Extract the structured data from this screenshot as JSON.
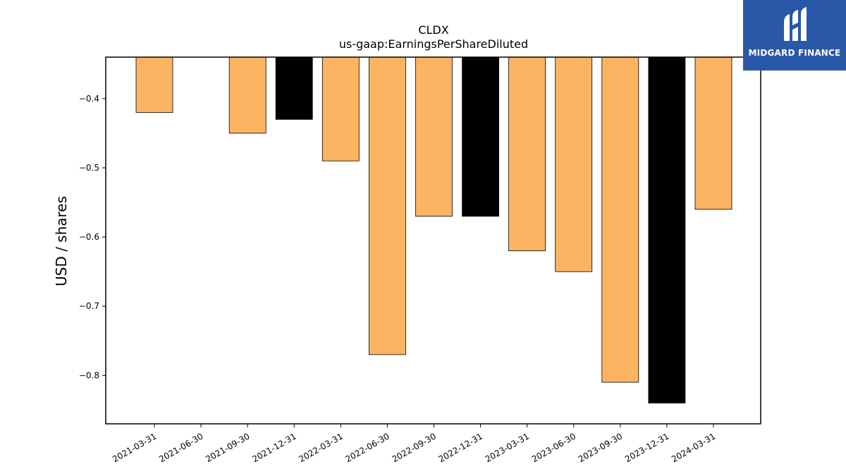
{
  "chart_data": {
    "type": "bar",
    "title": "CLDX",
    "subtitle": "us-gaap:EarningsPerShareDiluted",
    "ylabel": "USD / shares",
    "xlabel": "",
    "ylim": [
      -0.87,
      -0.34
    ],
    "yticks": [
      -0.4,
      -0.5,
      -0.6,
      -0.7,
      -0.8
    ],
    "ytick_labels": [
      "−0.4",
      "−0.5",
      "−0.6",
      "−0.7",
      "−0.8"
    ],
    "categories": [
      "2021-03-31",
      "2021-06-30",
      "2021-09-30",
      "2021-12-31",
      "2022-03-31",
      "2022-06-30",
      "2022-09-30",
      "2022-12-31",
      "2023-03-31",
      "2023-06-30",
      "2023-09-30",
      "2023-12-31",
      "2024-03-31"
    ],
    "values": [
      -0.42,
      null,
      -0.45,
      -0.43,
      -0.49,
      -0.77,
      -0.57,
      -0.57,
      -0.62,
      -0.65,
      -0.81,
      -0.84,
      -0.56
    ],
    "colors": [
      "#fdb462",
      null,
      "#fdb462",
      "#000000",
      "#fdb462",
      "#fdb462",
      "#fdb462",
      "#000000",
      "#fdb462",
      "#fdb462",
      "#fdb462",
      "#000000",
      "#fdb462"
    ],
    "grid": false,
    "legend": "none"
  },
  "logo": {
    "text": "MIDGARD FINANCE",
    "color": "#2a58a8"
  }
}
